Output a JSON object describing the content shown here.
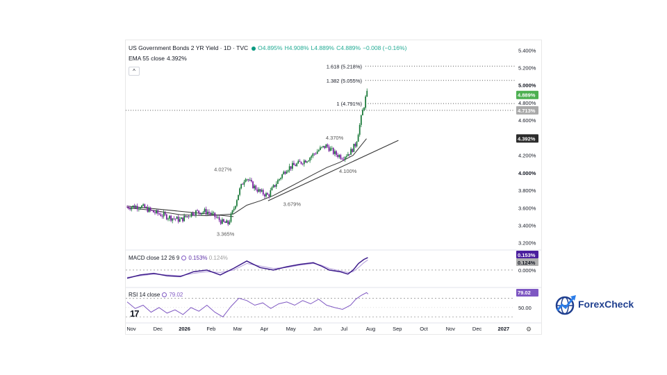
{
  "header": {
    "title": "US Government Bonds 2 YR Yield · 1D · TVC",
    "ohlc": [
      "O4.895%",
      "H4.908%",
      "L4.889%",
      "C4.889%",
      "−0.008 (−0.16%)"
    ],
    "ema_label": "EMA 55 close",
    "ema_value": "4.392%",
    "collapse_glyph": "^"
  },
  "chart_data": {
    "type": "line",
    "title": "US Government Bonds 2 YR Yield · 1D · TVC",
    "price_axis_ticks": [
      "5.400%",
      "5.200%",
      "5.000%",
      "4.800%",
      "4.600%",
      "4.200%",
      "4.000%",
      "3.800%",
      "3.600%",
      "3.400%",
      "3.200%"
    ],
    "ylim": [
      3.15,
      5.45
    ],
    "x_axis_ticks": [
      "Nov",
      "Dec",
      "2026",
      "Feb",
      "Mar",
      "Apr",
      "May",
      "Jun",
      "Jul",
      "Aug",
      "Sep",
      "Oct",
      "Nov",
      "Dec",
      "2027"
    ],
    "xlim_months": [
      0,
      14.5
    ],
    "price_path": [
      [
        0,
        3.61
      ],
      [
        0.5,
        3.62
      ],
      [
        1,
        3.55
      ],
      [
        1.5,
        3.5
      ],
      [
        2,
        3.46
      ],
      [
        2.5,
        3.55
      ],
      [
        3,
        3.56
      ],
      [
        3.3,
        3.5
      ],
      [
        3.6,
        3.43
      ],
      [
        3.8,
        3.42
      ],
      [
        4.0,
        3.58
      ],
      [
        4.2,
        3.78
      ],
      [
        4.45,
        3.96
      ],
      [
        4.7,
        3.86
      ],
      [
        5.0,
        3.78
      ],
      [
        5.3,
        3.74
      ],
      [
        5.6,
        3.88
      ],
      [
        6.0,
        4.05
      ],
      [
        6.4,
        4.1
      ],
      [
        6.8,
        4.16
      ],
      [
        7.2,
        4.26
      ],
      [
        7.5,
        4.31
      ],
      [
        7.8,
        4.22
      ],
      [
        8.1,
        4.18
      ],
      [
        8.4,
        4.24
      ],
      [
        8.6,
        4.33
      ],
      [
        8.75,
        4.55
      ],
      [
        8.85,
        4.7
      ],
      [
        8.92,
        4.78
      ],
      [
        9.0,
        4.91
      ],
      [
        9.06,
        4.89
      ]
    ],
    "last_close": 4.889,
    "ema55": {
      "name": "EMA 55 close",
      "value": 4.392,
      "path": [
        [
          0,
          3.6
        ],
        [
          1,
          3.57
        ],
        [
          2,
          3.52
        ],
        [
          3,
          3.51
        ],
        [
          4,
          3.53
        ],
        [
          4.5,
          3.63
        ],
        [
          5,
          3.68
        ],
        [
          5.5,
          3.74
        ],
        [
          6,
          3.82
        ],
        [
          6.5,
          3.9
        ],
        [
          7,
          3.98
        ],
        [
          7.5,
          4.06
        ],
        [
          8,
          4.12
        ],
        [
          8.5,
          4.2
        ],
        [
          9,
          4.39
        ]
      ]
    },
    "trendlines": [
      {
        "name": "descending",
        "points": [
          [
            0,
            3.62
          ],
          [
            4.0,
            3.5
          ]
        ]
      },
      {
        "name": "support",
        "points": [
          [
            5.3,
            3.68
          ],
          [
            10.2,
            4.37
          ]
        ]
      }
    ],
    "annotations": [
      {
        "text": "3.365%",
        "x": 3.7,
        "y": 3.28
      },
      {
        "text": "4.027%",
        "x": 3.6,
        "y": 4.02
      },
      {
        "text": "3.679%",
        "x": 6.2,
        "y": 3.62
      },
      {
        "text": "4.370%",
        "x": 7.8,
        "y": 4.38
      },
      {
        "text": "4.100%",
        "x": 8.3,
        "y": 4.0
      }
    ],
    "fib_levels": [
      {
        "label": "1.618 (5.218%)",
        "value": 5.218
      },
      {
        "label": "1.382 (5.055%)",
        "value": 5.055
      },
      {
        "label": "1 (4.791%)",
        "value": 4.791
      }
    ],
    "price_badges": [
      {
        "value": "4.889%",
        "color": "#4caf50"
      },
      {
        "value": "4.713%",
        "color": "#a9a9a9"
      },
      {
        "value": "4.392%",
        "color": "#2b2b2b"
      }
    ],
    "grid": false
  },
  "macd": {
    "label": "MACD close 12 26 9",
    "value1": "0.153%",
    "value2": "0.124%",
    "zero_tick": "0.000%",
    "badges": [
      {
        "value": "0.153%",
        "color": "#4a1f9e"
      },
      {
        "value": "0.124%",
        "color": "#b0b0b0"
      }
    ],
    "macd_path": [
      [
        0,
        -0.1
      ],
      [
        0.5,
        -0.06
      ],
      [
        1,
        -0.04
      ],
      [
        1.5,
        -0.07
      ],
      [
        2,
        -0.08
      ],
      [
        2.5,
        -0.02
      ],
      [
        3,
        0.0
      ],
      [
        3.5,
        -0.06
      ],
      [
        4,
        0.02
      ],
      [
        4.5,
        0.11
      ],
      [
        5,
        0.03
      ],
      [
        5.5,
        0.0
      ],
      [
        6,
        0.04
      ],
      [
        6.5,
        0.07
      ],
      [
        7,
        0.09
      ],
      [
        7.3,
        0.05
      ],
      [
        7.6,
        0.0
      ],
      [
        8,
        -0.02
      ],
      [
        8.3,
        -0.05
      ],
      [
        8.5,
        0.0
      ],
      [
        8.7,
        0.08
      ],
      [
        8.9,
        0.13
      ],
      [
        9.05,
        0.153
      ]
    ],
    "signal_path": [
      [
        0,
        -0.09
      ],
      [
        0.5,
        -0.07
      ],
      [
        1,
        -0.05
      ],
      [
        1.5,
        -0.06
      ],
      [
        2,
        -0.07
      ],
      [
        2.5,
        -0.04
      ],
      [
        3,
        -0.02
      ],
      [
        3.5,
        -0.03
      ],
      [
        4,
        0.0
      ],
      [
        4.5,
        0.08
      ],
      [
        5,
        0.05
      ],
      [
        5.5,
        0.02
      ],
      [
        6,
        0.03
      ],
      [
        6.5,
        0.06
      ],
      [
        7,
        0.08
      ],
      [
        7.3,
        0.06
      ],
      [
        7.6,
        0.02
      ],
      [
        8,
        -0.01
      ],
      [
        8.3,
        -0.03
      ],
      [
        8.5,
        -0.02
      ],
      [
        8.7,
        0.03
      ],
      [
        8.9,
        0.09
      ],
      [
        9.05,
        0.124
      ]
    ]
  },
  "rsi": {
    "label": "RSI 14 close",
    "value": "79.02",
    "tick": "50.00",
    "badge": {
      "value": "79.02",
      "color": "#7e57c2"
    },
    "path": [
      [
        0,
        62
      ],
      [
        0.3,
        48
      ],
      [
        0.6,
        55
      ],
      [
        0.9,
        40
      ],
      [
        1.2,
        50
      ],
      [
        1.5,
        38
      ],
      [
        1.8,
        45
      ],
      [
        2.1,
        35
      ],
      [
        2.4,
        50
      ],
      [
        2.7,
        42
      ],
      [
        3,
        55
      ],
      [
        3.3,
        40
      ],
      [
        3.6,
        30
      ],
      [
        3.9,
        52
      ],
      [
        4.2,
        70
      ],
      [
        4.5,
        65
      ],
      [
        4.8,
        55
      ],
      [
        5.1,
        60
      ],
      [
        5.4,
        48
      ],
      [
        5.7,
        58
      ],
      [
        6.0,
        62
      ],
      [
        6.3,
        55
      ],
      [
        6.6,
        65
      ],
      [
        6.9,
        58
      ],
      [
        7.2,
        68
      ],
      [
        7.5,
        55
      ],
      [
        7.8,
        50
      ],
      [
        8.1,
        46
      ],
      [
        8.4,
        55
      ],
      [
        8.6,
        68
      ],
      [
        8.8,
        76
      ],
      [
        9.0,
        82
      ],
      [
        9.06,
        79.02
      ]
    ]
  },
  "footer": {
    "tv_logo": "17",
    "settings_glyph": "⚙"
  },
  "brand": {
    "name": "ForexCheck",
    "primary_color": "#1f3f8f",
    "accent_color": "#2b7de9"
  }
}
